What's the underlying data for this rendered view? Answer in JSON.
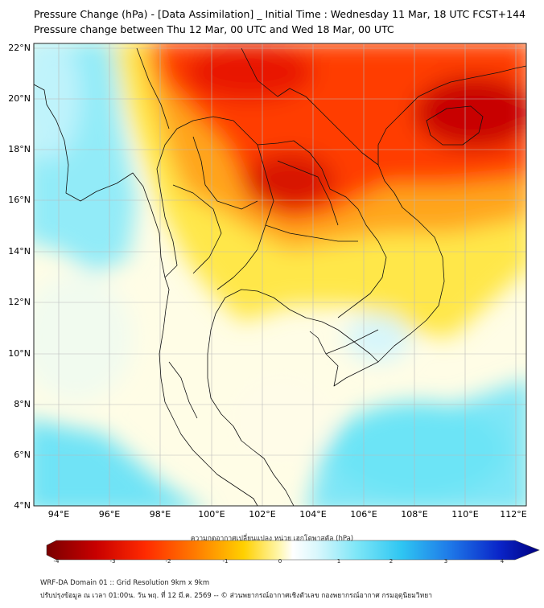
{
  "title_line1": "Pressure Change (hPa) - [Data Assimilation] _ Initial Time : Wednesday 11 Mar, 18 UTC FCST+144",
  "title_line2": "Pressure change between Thu 12 Mar, 00 UTC and Wed 18 Mar, 00 UTC",
  "lat_labels": [
    "22°N",
    "20°N",
    "18°N",
    "16°N",
    "14°N",
    "12°N",
    "10°N",
    "8°N",
    "6°N",
    "4°N"
  ],
  "lon_labels": [
    "94°E",
    "96°E",
    "98°E",
    "100°E",
    "102°E",
    "104°E",
    "106°E",
    "108°E",
    "110°E",
    "112°E"
  ],
  "colorbar": {
    "title": "ความกดอากาศเปลี่ยนแปลง หน่วย เฮกโตพาสคัล (hPa)",
    "ticks": [
      "-4",
      "-3",
      "-2",
      "-1",
      "0",
      "1",
      "2",
      "3",
      "4"
    ],
    "min": -4,
    "max": 4
  },
  "footer_line1": "WRF-DA Domain 01 :: Grid Resolution 9km x 9km",
  "footer_line2": "ปรับปรุงข้อมูล ณ เวลา 01:00น. วัน พฤ. ที่ 12 มี.ค. 2569 -- © ส่วนพยากรณ์อากาศเชิงตัวเลข กองพยากรณ์อากาศ กรมอุตุนิยมวิทยา",
  "map_extent": {
    "lon_min": 93,
    "lon_max": 112.5,
    "lat_min": 4,
    "lat_max": 22
  },
  "colors": {
    "deep_red": "#c80000",
    "red": "#ff2a00",
    "orange": "#ff9a00",
    "yellow": "#ffe93a",
    "pale_yellow": "#fffbd0",
    "pale_cyan": "#d2f4fb",
    "cyan": "#6ce4f6"
  }
}
